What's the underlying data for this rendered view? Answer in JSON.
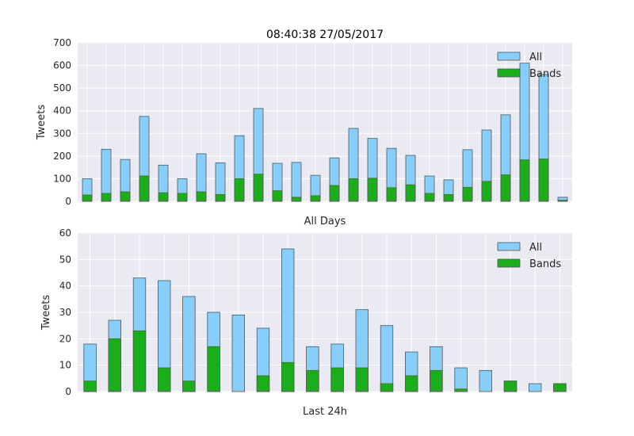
{
  "figure": {
    "title": "08:40:38 27/05/2017"
  },
  "colors": {
    "all": "#87cefa",
    "bands": "#1aaf1a",
    "plot_bg": "#eaeaf2",
    "grid": "#ffffff",
    "bar_edge": "#555555"
  },
  "chart_data": [
    {
      "type": "bar",
      "title": "08:40:38 27/05/2017",
      "xlabel": "All Days",
      "ylabel": "Tweets",
      "ylim": [
        0,
        700
      ],
      "yticks": [
        0,
        100,
        200,
        300,
        400,
        500,
        600,
        700
      ],
      "grid": true,
      "legend": "top-right",
      "series": [
        {
          "name": "All",
          "values": [
            100,
            230,
            185,
            375,
            160,
            100,
            210,
            170,
            290,
            410,
            168,
            172,
            115,
            192,
            322,
            278,
            234,
            203,
            112,
            95,
            228,
            315,
            382,
            610,
            560,
            18
          ]
        },
        {
          "name": "Bands",
          "values": [
            28,
            35,
            42,
            112,
            38,
            35,
            42,
            30,
            100,
            120,
            47,
            18,
            25,
            70,
            100,
            102,
            60,
            73,
            35,
            30,
            62,
            88,
            117,
            183,
            187,
            5
          ]
        }
      ]
    },
    {
      "type": "bar",
      "title": "",
      "xlabel": "Last 24h",
      "ylabel": "Tweets",
      "ylim": [
        0,
        60
      ],
      "yticks": [
        0,
        10,
        20,
        30,
        40,
        50,
        60
      ],
      "grid": true,
      "legend": "top-right",
      "series": [
        {
          "name": "All",
          "values": [
            18,
            27,
            43,
            42,
            36,
            30,
            29,
            24,
            54,
            17,
            18,
            31,
            25,
            15,
            17,
            9,
            8,
            4,
            3,
            3
          ]
        },
        {
          "name": "Bands",
          "values": [
            4,
            20,
            23,
            9,
            4,
            17,
            0,
            6,
            11,
            8,
            9,
            9,
            3,
            6,
            8,
            1,
            0,
            4,
            0,
            3
          ]
        }
      ]
    }
  ]
}
